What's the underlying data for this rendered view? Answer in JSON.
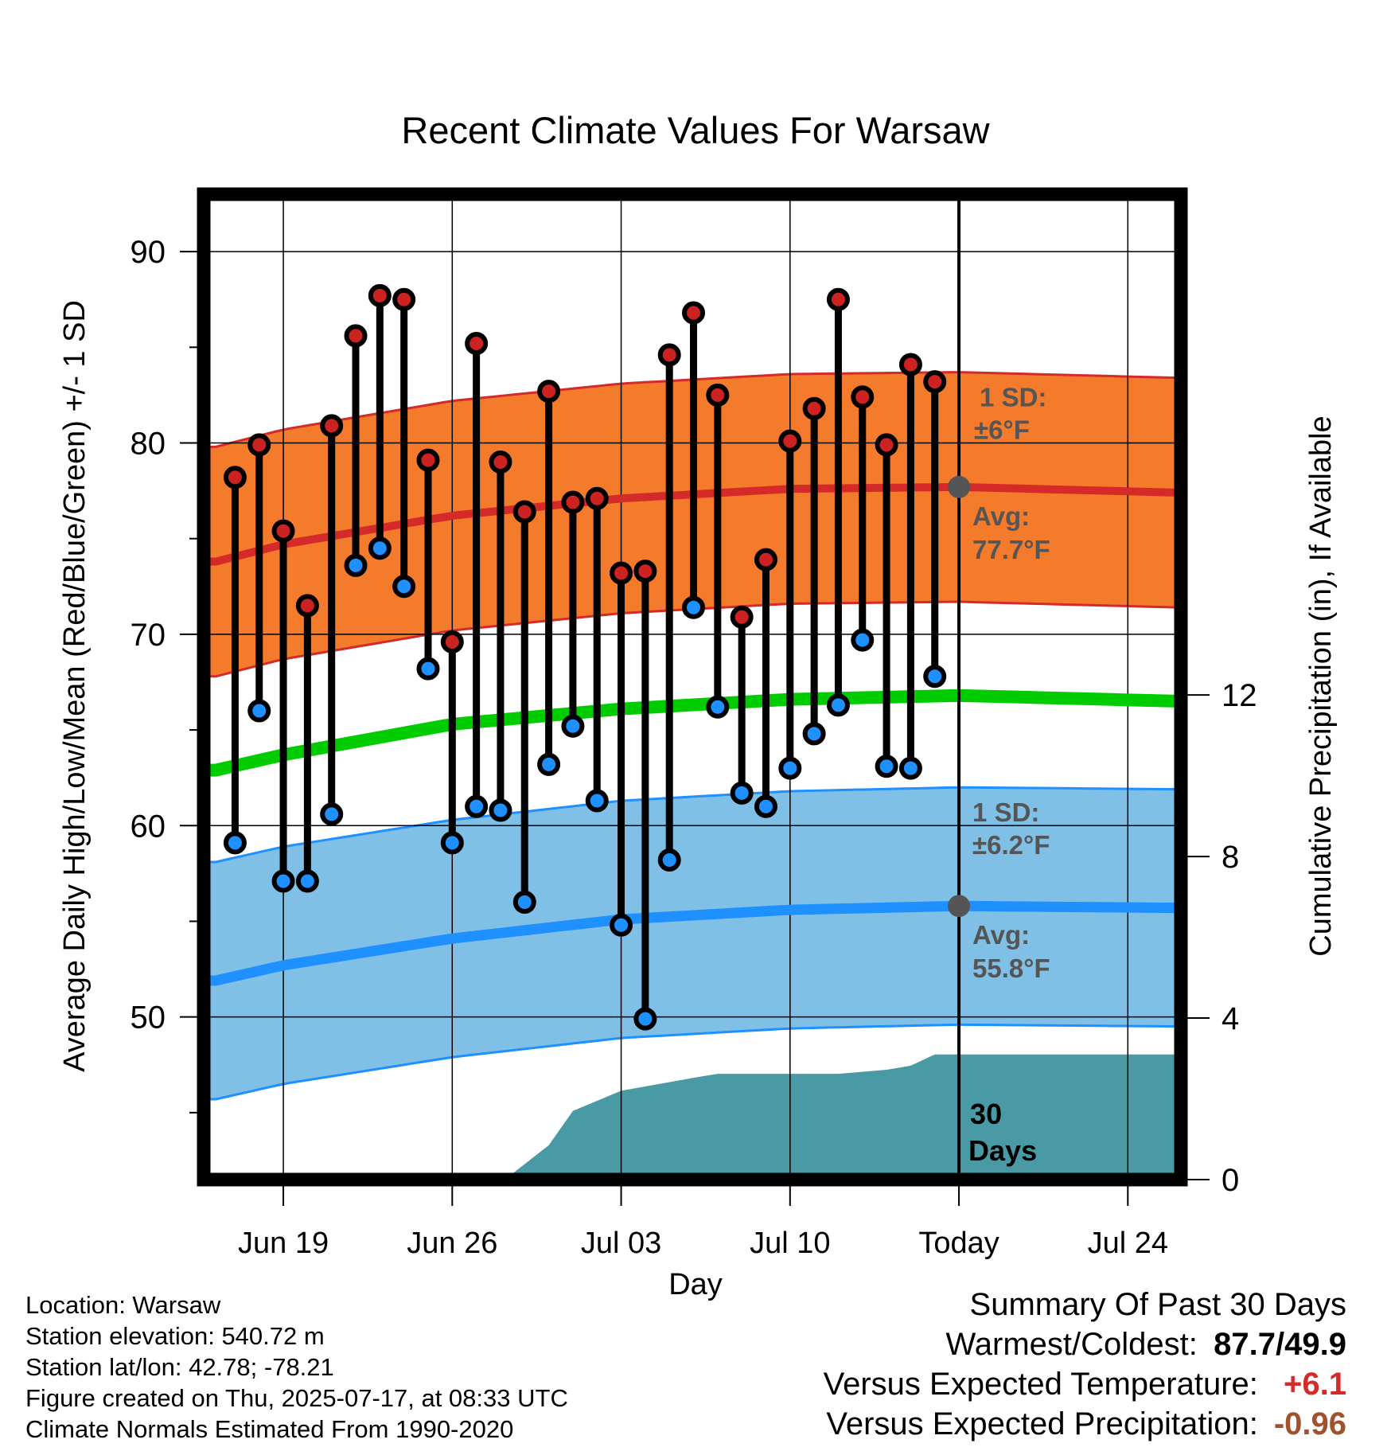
{
  "chart_data": {
    "type": "line",
    "title": "Recent Climate Values For Warsaw",
    "xlabel": "Day",
    "ylabel": "Average Daily High/Low/Mean (Red/Blue/Green) +/- 1 SD",
    "y2label": "Cumulative Precipitation (in), If Available",
    "ylim": [
      41.5,
      93
    ],
    "y2lim": [
      0,
      24.4
    ],
    "yticks": [
      50,
      60,
      70,
      80,
      90
    ],
    "y2ticks": [
      0,
      4,
      8,
      12
    ],
    "xlim": [
      -3.3,
      37.2
    ],
    "xticks": [
      {
        "day": 0,
        "label": "Jun 19"
      },
      {
        "day": 7,
        "label": "Jun 26"
      },
      {
        "day": 14,
        "label": "Jul 03"
      },
      {
        "day": 21,
        "label": "Jul 10"
      },
      {
        "day": 28,
        "label": "Today"
      },
      {
        "day": 35,
        "label": "Jul 24"
      }
    ],
    "x_reference_date": "Jun 19",
    "grid": true,
    "today_day": 28,
    "normals": {
      "day": [
        -2.8,
        0,
        7,
        14,
        21,
        28,
        37.2
      ],
      "avg_high": [
        73.8,
        74.7,
        76.2,
        77.1,
        77.6,
        77.7,
        77.4
      ],
      "avg_low": [
        51.9,
        52.7,
        54.1,
        55.1,
        55.6,
        55.8,
        55.7
      ],
      "avg_mean": [
        62.9,
        63.7,
        65.3,
        66.1,
        66.6,
        66.8,
        66.5
      ],
      "high_sd": 6,
      "low_sd": 6.2
    },
    "colors": {
      "high_band": "#f47a2c",
      "high_line": "#d42a2a",
      "low_band": "#80c0e6",
      "low_line": "#1e90ff",
      "mean_line": "#00cc00",
      "precip": "#4a9aa5",
      "high_marker": "#cc2222",
      "low_marker": "#1e90ff",
      "annot_text": "#555555"
    },
    "series": [
      {
        "name": "Daily High",
        "days": [
          -2,
          -1,
          0,
          1,
          2,
          3,
          4,
          5,
          6,
          7,
          8,
          9,
          10,
          11,
          12,
          13,
          14,
          15,
          16,
          17,
          18,
          19,
          20,
          21,
          22,
          23,
          24,
          25,
          26,
          27
        ],
        "values": [
          78.2,
          79.9,
          75.4,
          71.5,
          80.9,
          85.6,
          87.7,
          87.5,
          79.1,
          69.6,
          85.2,
          79.0,
          76.4,
          82.7,
          76.9,
          77.1,
          73.2,
          73.3,
          84.6,
          86.8,
          82.5,
          70.9,
          73.9,
          80.1,
          81.8,
          87.5,
          82.4,
          79.9,
          84.1,
          83.2
        ]
      },
      {
        "name": "Daily Low",
        "days": [
          -2,
          -1,
          0,
          1,
          2,
          3,
          4,
          5,
          6,
          7,
          8,
          9,
          10,
          11,
          12,
          13,
          14,
          15,
          16,
          17,
          18,
          19,
          20,
          21,
          22,
          23,
          24,
          25,
          26,
          27
        ],
        "values": [
          59.1,
          66.0,
          57.1,
          57.1,
          60.6,
          73.6,
          74.5,
          72.5,
          68.2,
          59.1,
          61.0,
          60.8,
          56.0,
          63.2,
          65.2,
          61.3,
          54.8,
          49.9,
          58.2,
          71.4,
          66.2,
          61.7,
          61.0,
          63.0,
          64.8,
          66.3,
          69.7,
          63.1,
          63.0,
          67.8
        ]
      },
      {
        "name": "Cumulative Precipitation",
        "days": [
          -2.8,
          0,
          9.5,
          11,
          12,
          14,
          17,
          18,
          23,
          25,
          26,
          27,
          37.2
        ],
        "values": [
          0,
          0.15,
          0.15,
          0.85,
          1.7,
          2.2,
          2.52,
          2.62,
          2.62,
          2.72,
          2.82,
          3.1,
          3.1
        ]
      }
    ],
    "annotations": {
      "high_sd_label": "1 SD:",
      "high_sd_value": "±6°F",
      "high_avg_label": "Avg:",
      "high_avg_value": "77.7°F",
      "low_sd_label": "1 SD:",
      "low_sd_value": "±6.2°F",
      "low_avg_label": "Avg:",
      "low_avg_value": "55.8°F",
      "days_count": "30",
      "days_word": "Days"
    }
  },
  "footer": {
    "location": "Location: Warsaw",
    "elevation": "Station elevation: 540.72 m",
    "latlon": "Station lat/lon: 42.78; -78.21",
    "created": "Figure created on Thu, 2025-07-17, at 08:33 UTC",
    "normals": "Climate Normals Estimated From 1990-2020"
  },
  "summary": {
    "title": "Summary Of Past 30 Days",
    "warm_label": "Warmest/Coldest:",
    "warm_value": "87.7/49.9",
    "temp_label": "Versus Expected Temperature:",
    "temp_value": "+6.1",
    "prcp_label": "Versus Expected Precipitation:",
    "prcp_value": "-0.96"
  }
}
